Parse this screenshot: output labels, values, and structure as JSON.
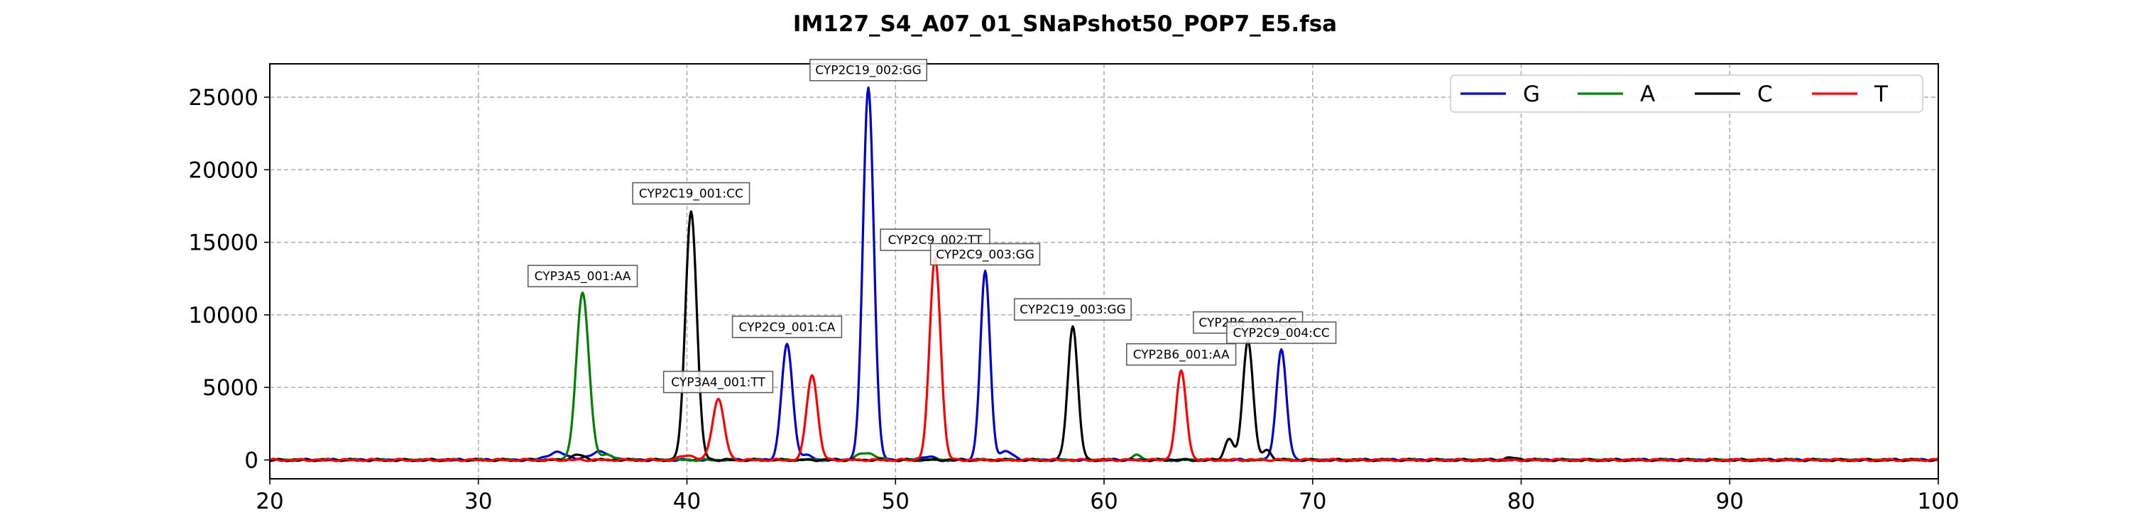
{
  "chart_data": {
    "type": "line",
    "title": "IM127_S4_A07_01_SNaPshot50_POP7_E5.fsa",
    "xlabel": "",
    "ylabel": "",
    "xlim": [
      20,
      100
    ],
    "ylim": [
      -1300,
      27300
    ],
    "x_ticks": [
      20,
      30,
      40,
      50,
      60,
      70,
      80,
      90,
      100
    ],
    "y_ticks": [
      0,
      5000,
      10000,
      15000,
      20000,
      25000
    ],
    "grid": true,
    "legend": "top-right",
    "baseline_noise": 150,
    "series": [
      {
        "name": "G",
        "color": "#0000cc",
        "peaks": [
          {
            "x": 33.8,
            "y": 500,
            "w": 0.5
          },
          {
            "x": 35.8,
            "y": 600,
            "w": 0.4
          },
          {
            "x": 44.8,
            "y": 8000,
            "w": 0.26
          },
          {
            "x": 45.7,
            "y": 300,
            "w": 0.3
          },
          {
            "x": 48.7,
            "y": 25700,
            "w": 0.26
          },
          {
            "x": 51.5,
            "y": 250,
            "w": 0.3
          },
          {
            "x": 54.3,
            "y": 13000,
            "w": 0.23
          },
          {
            "x": 55.3,
            "y": 600,
            "w": 0.3
          },
          {
            "x": 68.5,
            "y": 7600,
            "w": 0.24
          }
        ]
      },
      {
        "name": "A",
        "color": "#008000",
        "peaks": [
          {
            "x": 35.0,
            "y": 11500,
            "w": 0.3
          },
          {
            "x": 36.2,
            "y": 300,
            "w": 0.4
          },
          {
            "x": 48.6,
            "y": 500,
            "w": 0.4
          },
          {
            "x": 61.6,
            "y": 300,
            "w": 0.25
          }
        ]
      },
      {
        "name": "C",
        "color": "#000000",
        "peaks": [
          {
            "x": 34.8,
            "y": 350,
            "w": 0.3
          },
          {
            "x": 40.2,
            "y": 17200,
            "w": 0.27
          },
          {
            "x": 58.5,
            "y": 9200,
            "w": 0.24
          },
          {
            "x": 66.0,
            "y": 1400,
            "w": 0.22
          },
          {
            "x": 66.9,
            "y": 8300,
            "w": 0.24
          },
          {
            "x": 67.8,
            "y": 700,
            "w": 0.2
          },
          {
            "x": 79.6,
            "y": 150,
            "w": 0.3
          }
        ]
      },
      {
        "name": "T",
        "color": "#ff0000",
        "peaks": [
          {
            "x": 40.0,
            "y": 350,
            "w": 0.3
          },
          {
            "x": 41.5,
            "y": 4200,
            "w": 0.28
          },
          {
            "x": 46.0,
            "y": 5900,
            "w": 0.26
          },
          {
            "x": 51.9,
            "y": 14000,
            "w": 0.26
          },
          {
            "x": 63.7,
            "y": 6100,
            "w": 0.24
          }
        ]
      }
    ],
    "annotations": [
      {
        "text": "CYP3A5_001:AA",
        "x": 35.0,
        "y": 11500
      },
      {
        "text": "CYP2C19_001:CC",
        "x": 40.2,
        "y": 17200
      },
      {
        "text": "CYP3A4_001:TT",
        "x": 41.5,
        "y": 4200
      },
      {
        "text": "CYP2C9_001:CA",
        "x": 44.8,
        "y": 8000
      },
      {
        "text": "CYP2C19_002:GG",
        "x": 48.7,
        "y": 25700
      },
      {
        "text": "CYP2C9_002:TT",
        "x": 51.9,
        "y": 14000
      },
      {
        "text": "CYP2C9_003:GG",
        "x": 54.3,
        "y": 13000
      },
      {
        "text": "CYP2C19_003:GG",
        "x": 58.5,
        "y": 9200
      },
      {
        "text": "CYP2B6_001:AA",
        "x": 63.7,
        "y": 6100
      },
      {
        "text": "CYP2B6_002:GG",
        "x": 66.9,
        "y": 8300
      },
      {
        "text": "CYP2C9_004:CC",
        "x": 68.5,
        "y": 7600
      }
    ]
  }
}
